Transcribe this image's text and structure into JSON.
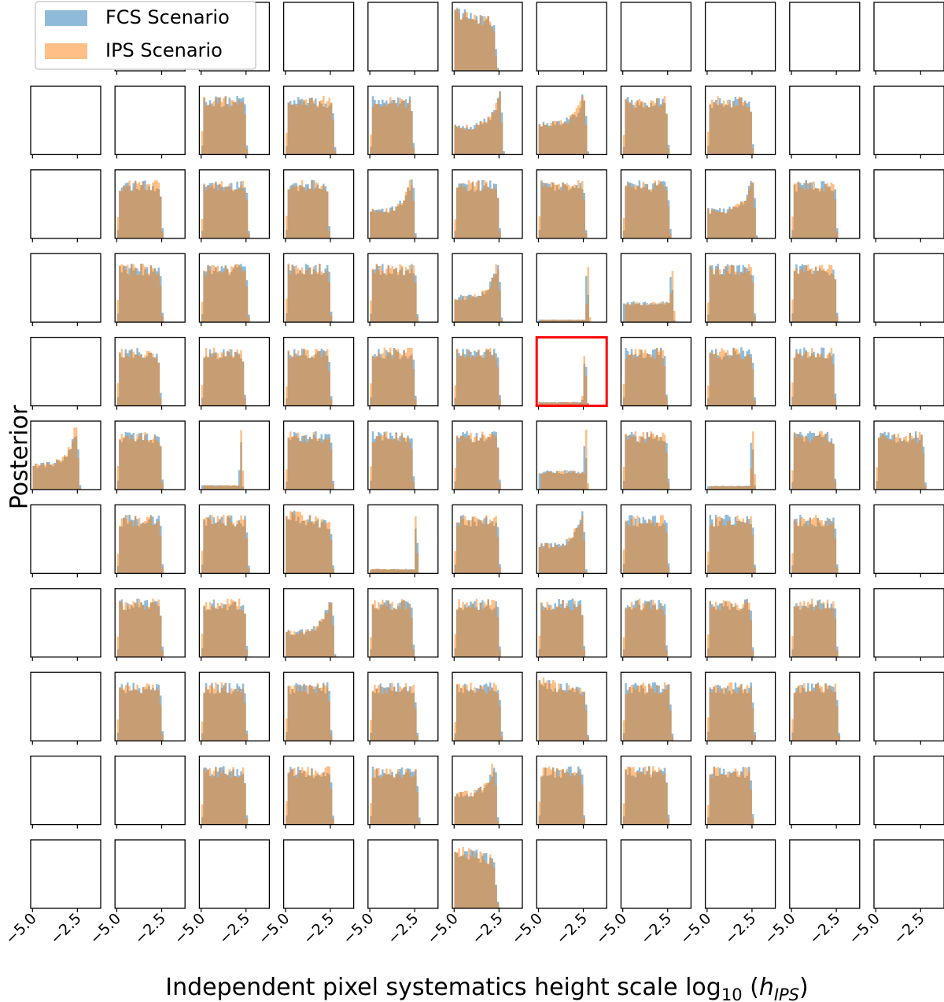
{
  "chart_data": {
    "type": "histogram_grid",
    "rows": 11,
    "cols": 11,
    "xlabel": "Independent pixel systematics height scale log",
    "xlabel_subscript": "10",
    "xlabel_arg_open": " (",
    "xlabel_arg_var": "h",
    "xlabel_arg_sub": "IPS",
    "xlabel_arg_close": ")",
    "ylabel": "Posterior",
    "x_ticks": [
      -5.0,
      -2.5
    ],
    "x_tick_labels": [
      "−5.0",
      "−2.5"
    ],
    "xlim": [
      -5.1,
      -1.2
    ],
    "series": [
      {
        "name": "FCS Scenario",
        "color": "#1f77b4"
      },
      {
        "name": "IPS Scenario",
        "color": "#ff7f0e"
      }
    ],
    "histogram_alpha": 0.5,
    "highlight": {
      "row": 4,
      "col": 6,
      "color": "#ff0000"
    },
    "panels": [
      [
        "E",
        "E",
        "E",
        "E",
        "E",
        "P-4.9-2.8-1",
        "E",
        "E",
        "E",
        "E",
        "E"
      ],
      [
        "E",
        "E",
        "U-4.9-2.6-0",
        "U-4.9-2.4-0",
        "U-4.9-2.7-0",
        "R-4.9-2.4-1",
        "R-4.9-2.4-2",
        "U-4.9-2.6-0",
        "U-4.9-2.6-0",
        "E",
        "E"
      ],
      [
        "E",
        "U-4.9-2.6-0",
        "U-4.9-2.5-0",
        "U-4.9-2.7-0",
        "R-4.9-2.6-1",
        "U-4.9-2.6-0",
        "U-4.9-2.5-0",
        "U-4.9-2.5-0",
        "R-4.9-2.4-1",
        "U-4.9-2.6-0",
        "E"
      ],
      [
        "E",
        "U-4.9-2.6-0",
        "U-4.9-2.5-0",
        "U-4.9-2.6-0",
        "U-4.9-2.5-0",
        "R-4.9-2.5-0",
        "S-4.9-2.3-0",
        "S-4.9-2.3-1",
        "U-4.9-2.5-0",
        "U-4.9-2.6-0",
        "E"
      ],
      [
        "E",
        "U-4.9-2.7-0",
        "U-4.9-2.7-0",
        "U-4.9-2.6-0",
        "U-4.9-2.6-0",
        "U-4.9-2.6-0",
        "S-4.9-2.4-3",
        "U-4.9-2.7-0",
        "U-4.9-2.5-0",
        "U-4.9-2.7-0",
        "E"
      ],
      [
        "R-4.9-2.5-0",
        "U-4.9-2.6-0",
        "S-4.9-2.8-4",
        "U-4.9-2.5-0",
        "U-4.9-2.7-0",
        "U-4.9-2.6-0",
        "S-4.9-2.4-2",
        "U-4.9-2.6-0",
        "S-4.9-2.5-3",
        "U-4.9-2.7-0",
        "U-4.9-2.4-0"
      ],
      [
        "E",
        "U-4.9-2.6-0",
        "U-4.9-2.5-0",
        "P-4.9-2.5-0",
        "S-4.9-2.4-4",
        "U-4.9-2.6-0",
        "R-4.9-2.5-1",
        "U-4.9-2.6-0",
        "U-4.9-2.5-0",
        "U-4.9-2.6-0",
        "E"
      ],
      [
        "E",
        "U-4.9-2.6-0",
        "U-4.9-2.6-0",
        "R-4.9-2.4-0",
        "U-4.9-2.7-0",
        "U-4.9-2.6-0",
        "U-4.9-2.6-0",
        "U-4.9-2.7-0",
        "U-4.9-2.6-0",
        "U-4.9-2.6-0",
        "E"
      ],
      [
        "E",
        "U-4.9-2.6-0",
        "U-4.9-2.6-0",
        "U-4.9-2.6-0",
        "U-4.9-2.5-0",
        "U-4.9-2.5-0",
        "P-4.9-2.4-0",
        "U-4.9-2.4-0",
        "U-4.9-2.5-0",
        "U-4.9-2.5-0",
        "E"
      ],
      [
        "E",
        "E",
        "U-4.9-2.6-0",
        "U-4.9-2.5-0",
        "U-4.9-2.4-0",
        "R-4.9-2.7-2",
        "U-4.9-2.6-0",
        "U-4.9-2.6-0",
        "U-4.9-2.6-0",
        "E",
        "E"
      ],
      [
        "E",
        "E",
        "E",
        "E",
        "E",
        "P-4.9-2.8-2",
        "E",
        "E",
        "E",
        "E",
        "E"
      ]
    ]
  }
}
